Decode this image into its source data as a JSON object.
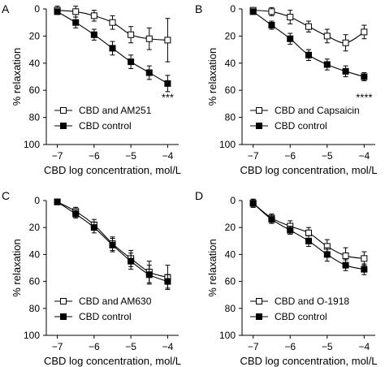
{
  "figure": {
    "y_axis_label": "% relaxation",
    "x_axis_label": "CBD log concentration, mol/L"
  },
  "chart_data": [
    {
      "type": "line",
      "panel_letter": "A",
      "xlim": [
        -7.3,
        -3.7
      ],
      "ylim": [
        0,
        100
      ],
      "y_inverted": true,
      "x_ticks": [
        -7,
        -6,
        -5,
        -4
      ],
      "x_tick_labels": [
        "−7",
        "−6",
        "−5",
        "−4"
      ],
      "y_ticks": [
        0,
        20,
        40,
        60,
        80,
        100
      ],
      "x": [
        -7,
        -6.5,
        -6,
        -5.5,
        -5,
        -4.5,
        -4
      ],
      "legend_position": "bottom-left",
      "annotation": "***",
      "series": [
        {
          "name": "CBD and AM251",
          "marker": "open-square",
          "values": [
            1,
            2,
            5,
            10,
            19,
            22,
            23
          ],
          "errors": [
            3,
            4,
            4,
            5,
            6,
            8,
            16
          ]
        },
        {
          "name": "CBD control",
          "marker": "filled-square",
          "values": [
            2,
            10,
            19,
            29,
            39,
            47,
            55
          ],
          "errors": [
            2,
            4,
            4,
            5,
            5,
            5,
            6
          ]
        }
      ]
    },
    {
      "type": "line",
      "panel_letter": "B",
      "xlim": [
        -7.3,
        -3.7
      ],
      "ylim": [
        0,
        100
      ],
      "y_inverted": true,
      "x_ticks": [
        -7,
        -6,
        -5,
        -4
      ],
      "x_tick_labels": [
        "−7",
        "−6",
        "−5",
        "−4"
      ],
      "y_ticks": [
        0,
        20,
        40,
        60,
        80,
        100
      ],
      "x": [
        -7,
        -6.5,
        -6,
        -5.5,
        -5,
        -4.5,
        -4
      ],
      "legend_position": "bottom-left",
      "annotation": "****",
      "series": [
        {
          "name": "CBD and Capsaicin",
          "marker": "open-square",
          "values": [
            1,
            2,
            6,
            13,
            20,
            25,
            17
          ],
          "errors": [
            2,
            3,
            5,
            4,
            5,
            6,
            5
          ]
        },
        {
          "name": "CBD control",
          "marker": "filled-square",
          "values": [
            2,
            12,
            22,
            34,
            41,
            46,
            50
          ],
          "errors": [
            2,
            3,
            4,
            4,
            4,
            4,
            3
          ]
        }
      ]
    },
    {
      "type": "line",
      "panel_letter": "C",
      "xlim": [
        -7.3,
        -3.7
      ],
      "ylim": [
        0,
        100
      ],
      "y_inverted": true,
      "x_ticks": [
        -7,
        -6,
        -5,
        -4
      ],
      "x_tick_labels": [
        "−7",
        "−6",
        "−5",
        "−4"
      ],
      "y_ticks": [
        0,
        20,
        40,
        60,
        80,
        100
      ],
      "x": [
        -7,
        -6.5,
        -6,
        -5.5,
        -5,
        -4.5,
        -4
      ],
      "legend_position": "bottom-left",
      "annotation": "",
      "series": [
        {
          "name": "CBD and AM630",
          "marker": "open-square",
          "values": [
            1,
            8,
            18,
            32,
            43,
            53,
            57
          ],
          "errors": [
            2,
            3,
            4,
            5,
            6,
            8,
            9
          ]
        },
        {
          "name": "CBD control",
          "marker": "filled-square",
          "values": [
            1,
            10,
            20,
            33,
            45,
            55,
            60
          ],
          "errors": [
            2,
            3,
            4,
            5,
            6,
            7,
            5
          ]
        }
      ]
    },
    {
      "type": "line",
      "panel_letter": "D",
      "xlim": [
        -7.3,
        -3.7
      ],
      "ylim": [
        0,
        100
      ],
      "y_inverted": true,
      "x_ticks": [
        -7,
        -6,
        -5,
        -4
      ],
      "x_tick_labels": [
        "−7",
        "−6",
        "−5",
        "−4"
      ],
      "y_ticks": [
        0,
        20,
        40,
        60,
        80,
        100
      ],
      "x": [
        -7,
        -6.5,
        -6,
        -5.5,
        -5,
        -4.5,
        -4
      ],
      "legend_position": "bottom-left",
      "annotation": "",
      "series": [
        {
          "name": "CBD and O-1918",
          "marker": "open-square",
          "values": [
            2,
            13,
            19,
            24,
            34,
            41,
            43
          ],
          "errors": [
            3,
            3,
            4,
            4,
            5,
            6,
            5
          ]
        },
        {
          "name": "CBD control",
          "marker": "filled-square",
          "values": [
            2,
            14,
            22,
            30,
            40,
            48,
            51
          ],
          "errors": [
            3,
            3,
            3,
            4,
            5,
            4,
            4
          ]
        }
      ]
    }
  ]
}
